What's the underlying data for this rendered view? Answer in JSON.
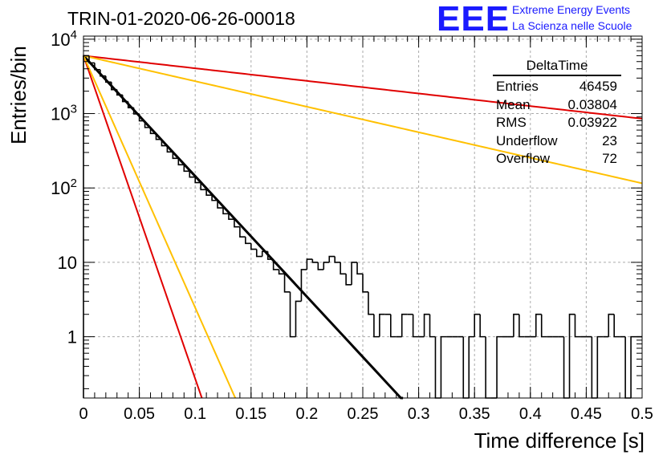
{
  "header": {
    "title": "TRIN-01-2020-06-26-00018",
    "logo_text": "EEE",
    "org_line1": "Extreme Energy Events",
    "org_line2": "La Scienza nelle Scuole"
  },
  "stats_box": {
    "name": "DeltaTime",
    "rows": [
      {
        "label": "Entries",
        "value": "46459"
      },
      {
        "label": "Mean",
        "value": "0.03804"
      },
      {
        "label": "RMS",
        "value": "0.03922"
      },
      {
        "label": "Underflow",
        "value": "23"
      },
      {
        "label": "Overflow",
        "value": "72"
      }
    ]
  },
  "chart_data": {
    "type": "histogram",
    "xlabel": "Time difference [s]",
    "ylabel": "Entries/bin",
    "xlim": [
      0,
      0.5
    ],
    "ylim": [
      0.15,
      11000
    ],
    "log_y": true,
    "grid": true,
    "x_ticks": [
      "0",
      "0.05",
      "0.1",
      "0.15",
      "0.2",
      "0.25",
      "0.3",
      "0.35",
      "0.4",
      "0.45",
      "0.5"
    ],
    "x_tick_values": [
      0,
      0.05,
      0.1,
      0.15,
      0.2,
      0.25,
      0.3,
      0.35,
      0.4,
      0.45,
      0.5
    ],
    "y_ticks": [
      {
        "value": 1,
        "base": "1",
        "exp": ""
      },
      {
        "value": 10,
        "base": "10",
        "exp": ""
      },
      {
        "value": 100,
        "base": "10",
        "exp": "2"
      },
      {
        "value": 1000,
        "base": "10",
        "exp": "3"
      },
      {
        "value": 10000,
        "base": "10",
        "exp": "4"
      }
    ],
    "bin_width": 0.005,
    "bin_contents": [
      6000,
      4800,
      3900,
      3200,
      2650,
      2100,
      1780,
      1450,
      1200,
      990,
      800,
      650,
      540,
      450,
      370,
      305,
      250,
      205,
      168,
      140,
      118,
      95,
      80,
      68,
      54,
      45,
      38,
      30,
      22,
      18,
      15,
      12,
      14,
      11,
      8,
      7,
      4,
      1,
      3,
      8,
      11,
      10,
      8,
      10,
      12,
      10,
      7,
      5,
      10,
      7,
      4,
      2,
      1,
      2,
      2,
      1,
      1,
      2,
      2,
      1,
      1,
      2,
      1,
      0.1,
      1,
      1,
      1,
      1,
      0.1,
      1,
      2,
      1,
      0.1,
      0.1,
      1,
      1,
      1,
      2,
      1,
      1,
      1,
      2,
      1,
      1,
      1,
      1,
      0.1,
      2,
      1,
      1,
      1,
      0.1,
      1,
      1,
      2,
      1,
      1,
      0.1,
      1,
      1
    ],
    "fit_functions": [
      {
        "name": "fit",
        "color": "#000000",
        "amplitude": 6000,
        "slope": -37.3,
        "x_range": [
          0,
          0.4
        ]
      },
      {
        "name": "upper-1",
        "color": "#e00000",
        "amplitude": 6000,
        "slope": -3.9,
        "x_range": [
          0,
          0.5
        ]
      },
      {
        "name": "upper-2",
        "color": "#ffc000",
        "amplitude": 6000,
        "slope": -7.9,
        "x_range": [
          0,
          0.5
        ]
      },
      {
        "name": "lower-1",
        "color": "#e00000",
        "amplitude": 6000,
        "slope": -100,
        "x_range": [
          0,
          0.106
        ]
      },
      {
        "name": "lower-2",
        "color": "#ffc000",
        "amplitude": 6000,
        "slope": -78,
        "x_range": [
          0,
          0.136
        ]
      }
    ]
  }
}
